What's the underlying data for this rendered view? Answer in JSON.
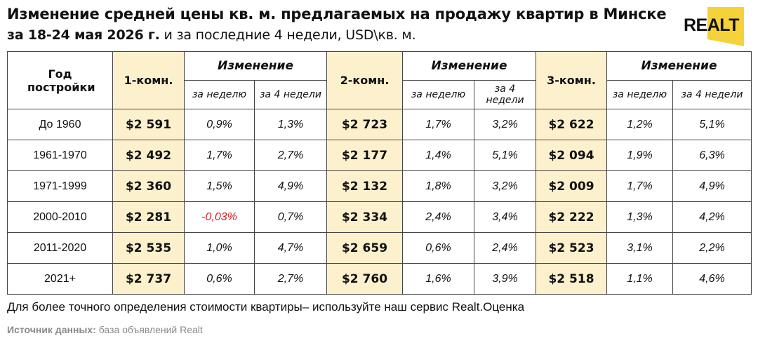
{
  "header": {
    "title_line1": "Изменение средней цены кв. м. предлагаемых на продажу квартир в Минске",
    "title_line2_bold": "за 18-24 мая 2026 г.",
    "title_line2_rest": " и за последние 4 недели, USD\\кв. м."
  },
  "logo": {
    "text": "REALT",
    "color": "#f5d23a"
  },
  "table": {
    "col_year": "Год постройки",
    "col_1room": "1-комн.",
    "col_2room": "2-комн.",
    "col_3room": "3-комн.",
    "change_label": "Изменение",
    "week_label": "за неделю",
    "four_weeks_label": "за 4 недели",
    "rows": [
      {
        "year": "До 1960",
        "p1": "$2 591",
        "w1": "0,9%",
        "m1": "1,3%",
        "p2": "$2 723",
        "w2": "1,7%",
        "m2": "3,2%",
        "p3": "$2 622",
        "w3": "1,2%",
        "m3": "5,1%"
      },
      {
        "year": "1961-1970",
        "p1": "$2 492",
        "w1": "1,7%",
        "m1": "2,7%",
        "p2": "$2 177",
        "w2": "1,4%",
        "m2": "5,1%",
        "p3": "$2 094",
        "w3": "1,9%",
        "m3": "6,3%"
      },
      {
        "year": "1971-1999",
        "p1": "$2 360",
        "w1": "1,5%",
        "m1": "4,9%",
        "p2": "$2 132",
        "w2": "1,8%",
        "m2": "3,2%",
        "p3": "$2 009",
        "w3": "1,7%",
        "m3": "4,9%"
      },
      {
        "year": "2000-2010",
        "p1": "$2 281",
        "w1": "-0,03%",
        "m1": "0,7%",
        "p2": "$2 334",
        "w2": "2,4%",
        "m2": "3,4%",
        "p3": "$2 222",
        "w3": "1,3%",
        "m3": "4,2%"
      },
      {
        "year": "2011-2020",
        "p1": "$2 535",
        "w1": "1,0%",
        "m1": "4,7%",
        "p2": "$2 659",
        "w2": "0,6%",
        "m2": "2,4%",
        "p3": "$2 523",
        "w3": "3,1%",
        "m3": "2,2%"
      },
      {
        "year": "2021+",
        "p1": "$2 737",
        "w1": "0,6%",
        "m1": "2,7%",
        "p2": "$2 760",
        "w2": "1,6%",
        "m2": "3,9%",
        "p3": "$2 518",
        "w3": "1,1%",
        "m3": "4,6%"
      }
    ]
  },
  "footer": {
    "note": "Для более точного определения стоимости квартиры– используйте наш сервис Realt.Оценка",
    "source_label": "Источник данных:",
    "source_text": " база объявлений Realt"
  },
  "colors": {
    "highlight": "#fdf0cc",
    "negative": "#d42020",
    "source_gray": "#8a8a8a"
  }
}
